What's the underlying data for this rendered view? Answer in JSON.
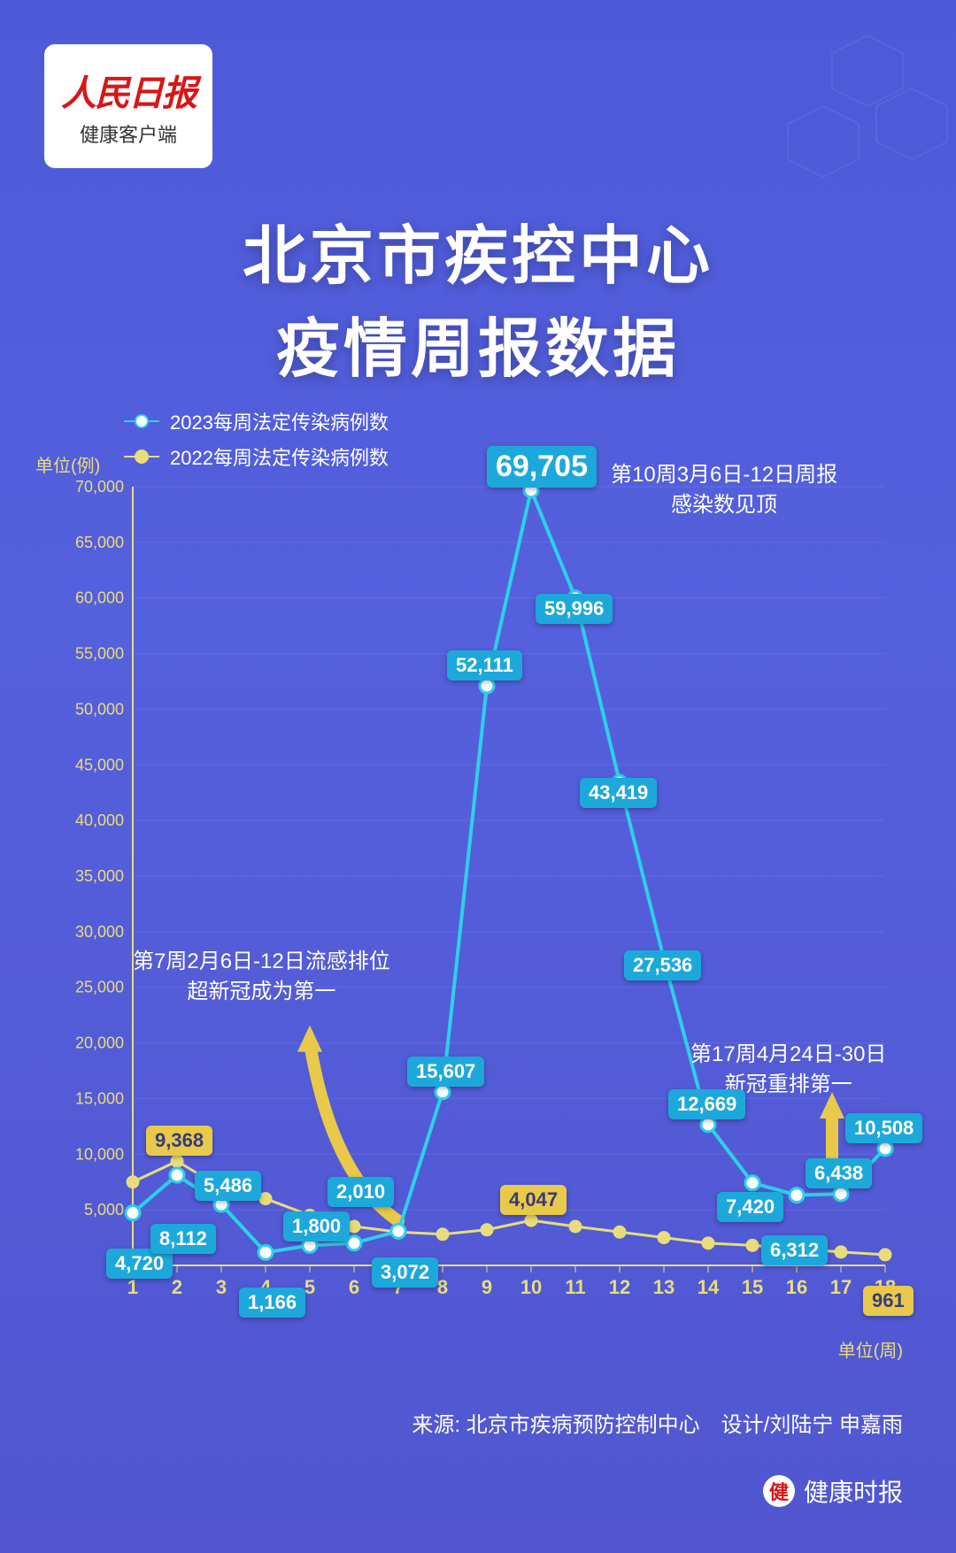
{
  "logo": {
    "main": "人民日报",
    "sub": "健康客户端"
  },
  "title": {
    "line1": "北京市疾控中心",
    "line2": "疫情周报数据"
  },
  "legend": {
    "series2023": {
      "label": "2023每周法定传染病例数",
      "color": "#2dd0e8"
    },
    "series2022": {
      "label": "2022每周法定传染病例数",
      "color": "#e8dd7a"
    }
  },
  "chart": {
    "type": "line",
    "xlabel": "单位(周)",
    "ylabel": "单位(例)",
    "xlim": [
      1,
      18
    ],
    "ylim": [
      0,
      70000
    ],
    "ytick_step": 5000,
    "xtick_step": 1,
    "background": "transparent",
    "grid_color": "#7a82e0",
    "series2023": {
      "color": "#2dd0e8",
      "marker_fill": "#ffffff",
      "line_width": 4,
      "marker_radius": 8,
      "x": [
        1,
        2,
        3,
        4,
        5,
        6,
        7,
        8,
        9,
        10,
        11,
        12,
        13,
        14,
        15,
        16,
        17,
        18
      ],
      "y": [
        4720,
        8112,
        5486,
        1166,
        1800,
        2010,
        3072,
        15607,
        52111,
        69705,
        59996,
        43419,
        27536,
        12669,
        7420,
        6312,
        6438,
        10508
      ]
    },
    "series2022": {
      "color": "#e8dd7a",
      "marker_fill": "#e8dd7a",
      "line_width": 3,
      "marker_radius": 6,
      "x": [
        1,
        2,
        3,
        4,
        5,
        6,
        7,
        8,
        9,
        10,
        11,
        12,
        13,
        14,
        15,
        16,
        17,
        18
      ],
      "y": [
        7500,
        9368,
        7000,
        6000,
        4500,
        3500,
        3000,
        2800,
        3200,
        4047,
        3500,
        3000,
        2500,
        2000,
        1800,
        1500,
        1200,
        961
      ]
    },
    "highlight_labels_2023": {
      "1": "4,720",
      "2": "8,112",
      "3": "5,486",
      "4": "1,166",
      "5": "1,800",
      "6": "2,010",
      "7": "3,072",
      "8": "15,607",
      "9": "52,111",
      "10": "69,705",
      "11": "59,996",
      "12": "43,419",
      "13": "27,536",
      "14": "12,669",
      "15": "7,420",
      "16": "6,312",
      "17": "6,438",
      "18": "10,508"
    },
    "highlight_labels_2022": {
      "2": "9,368",
      "10": "4,047",
      "18": "961"
    }
  },
  "annotations": {
    "peak": {
      "line1": "第10周3月6日-12日周报",
      "line2": "感染数见顶"
    },
    "week7": {
      "line1": "第7周2月6日-12日流感排位",
      "line2": "超新冠成为第一"
    },
    "week17": {
      "line1": "第17周4月24日-30日",
      "line2": "新冠重排第一"
    }
  },
  "footer": {
    "source": "来源: 北京市疾病预防控制中心　设计/刘陆宁 申嘉雨",
    "brand": "健康时报"
  }
}
